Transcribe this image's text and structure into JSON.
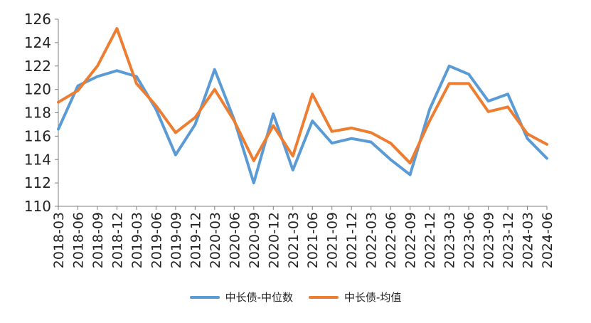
{
  "chart_data": {
    "type": "line",
    "categories": [
      "2018-03",
      "2018-06",
      "2018-09",
      "2018-12",
      "2019-03",
      "2019-06",
      "2019-09",
      "2019-12",
      "2020-03",
      "2020-06",
      "2020-09",
      "2020-12",
      "2021-03",
      "2021-06",
      "2021-09",
      "2021-12",
      "2022-03",
      "2022-06",
      "2022-09",
      "2022-12",
      "2023-03",
      "2023-06",
      "2023-09",
      "2023-12",
      "2024-03",
      "2024-06"
    ],
    "series": [
      {
        "name": "中长债-中位数",
        "color": "#5b9bd5",
        "values": [
          116.6,
          120.3,
          121.1,
          121.6,
          121.1,
          118.3,
          114.4,
          117.0,
          121.7,
          117.4,
          112.0,
          117.9,
          113.1,
          117.3,
          115.4,
          115.8,
          115.5,
          114.0,
          112.7,
          118.3,
          122.0,
          121.3,
          119.0,
          119.6,
          115.8,
          114.1
        ]
      },
      {
        "name": "中长债-均值",
        "color": "#ed7d31",
        "values": [
          118.9,
          119.9,
          122.0,
          125.2,
          120.5,
          118.6,
          116.3,
          117.6,
          120.0,
          117.3,
          113.9,
          116.9,
          114.3,
          119.6,
          116.4,
          116.7,
          116.3,
          115.4,
          113.7,
          117.3,
          120.5,
          120.5,
          118.1,
          118.5,
          116.2,
          115.3
        ]
      }
    ],
    "y_ticks": [
      110,
      112,
      114,
      116,
      118,
      120,
      122,
      124,
      126
    ],
    "ylim": [
      110,
      126
    ],
    "grid": false,
    "legend": "bottom"
  }
}
